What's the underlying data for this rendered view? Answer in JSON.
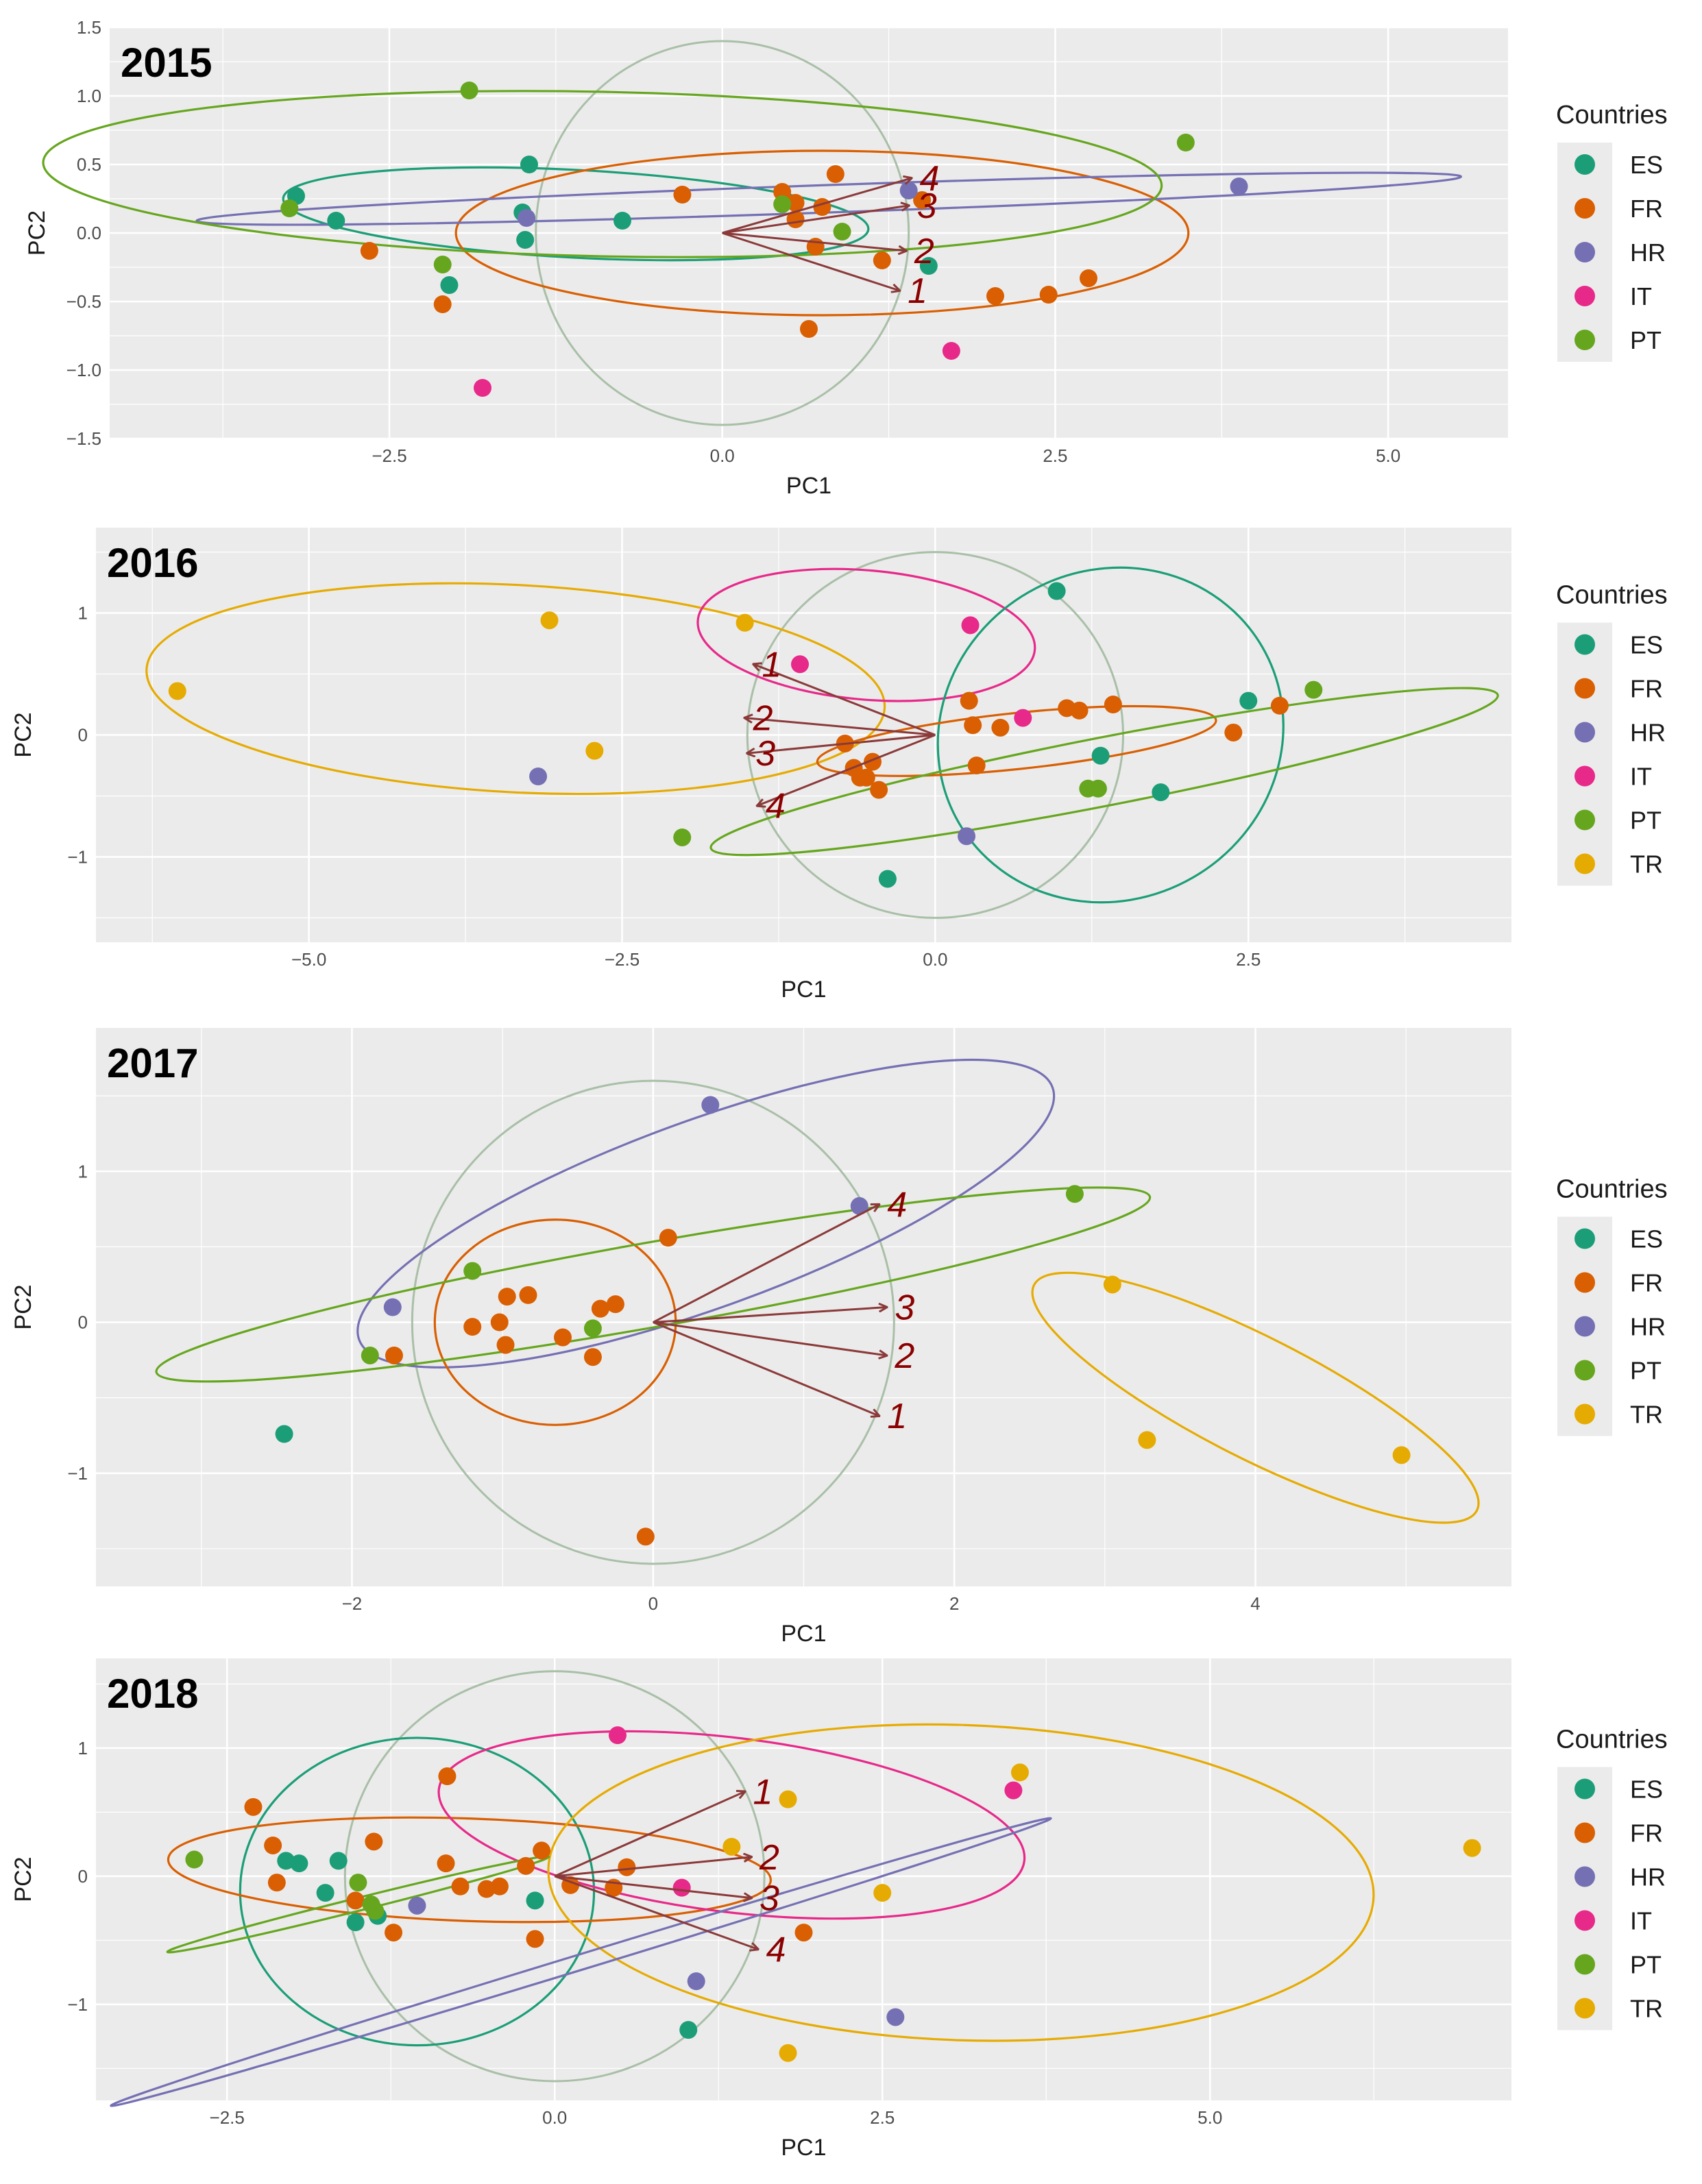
{
  "colors": {
    "ES": "#1b9e77",
    "FR": "#d95f02",
    "HR": "#7570b3",
    "IT": "#e7298a",
    "PT": "#66a61e",
    "TR": "#e6ab02",
    "circle": "#a9bfa7",
    "arrow": "#8b3a3a",
    "arrow_label": "#8b0000",
    "panel": "#ebebeb",
    "grid": "#ffffff"
  },
  "chart_data": [
    {
      "type": "scatter",
      "title": "2015",
      "xlabel": "PC1",
      "ylabel": "PC2",
      "xlim": [
        -4.6,
        5.9
      ],
      "ylim": [
        -1.5,
        1.5
      ],
      "xticks": [
        -2.5,
        0.0,
        2.5,
        5.0
      ],
      "xtick_labels": [
        "−2.5",
        "0.0",
        "2.5",
        "5.0"
      ],
      "yticks": [
        -1.5,
        -1.0,
        -0.5,
        0.0,
        0.5,
        1.0,
        1.5
      ],
      "ytick_labels": [
        "−1.5",
        "−1.0",
        "−0.5",
        "0.0",
        "0.5",
        "1.0",
        "1.5"
      ],
      "legend_title": "Countries",
      "legend": [
        "ES",
        "FR",
        "HR",
        "IT",
        "PT"
      ],
      "circle": {
        "cx": 0,
        "cy": 0,
        "r": 1.4
      },
      "points": [
        {
          "c": "ES",
          "x": -3.2,
          "y": 0.27
        },
        {
          "c": "ES",
          "x": -2.9,
          "y": 0.09
        },
        {
          "c": "ES",
          "x": -1.45,
          "y": 0.5
        },
        {
          "c": "ES",
          "x": -1.5,
          "y": 0.15
        },
        {
          "c": "ES",
          "x": -1.48,
          "y": -0.05
        },
        {
          "c": "ES",
          "x": -2.05,
          "y": -0.38
        },
        {
          "c": "ES",
          "x": -0.75,
          "y": 0.09
        },
        {
          "c": "ES",
          "x": 1.55,
          "y": -0.24
        },
        {
          "c": "FR",
          "x": -2.65,
          "y": -0.13
        },
        {
          "c": "FR",
          "x": -2.1,
          "y": -0.52
        },
        {
          "c": "FR",
          "x": -0.3,
          "y": 0.28
        },
        {
          "c": "FR",
          "x": 0.45,
          "y": 0.3
        },
        {
          "c": "FR",
          "x": 0.55,
          "y": 0.22
        },
        {
          "c": "FR",
          "x": 0.55,
          "y": 0.1
        },
        {
          "c": "FR",
          "x": 0.75,
          "y": 0.19
        },
        {
          "c": "FR",
          "x": 0.7,
          "y": -0.1
        },
        {
          "c": "FR",
          "x": 0.85,
          "y": 0.43
        },
        {
          "c": "FR",
          "x": 1.2,
          "y": -0.2
        },
        {
          "c": "FR",
          "x": 1.5,
          "y": 0.24
        },
        {
          "c": "FR",
          "x": 0.65,
          "y": -0.7
        },
        {
          "c": "FR",
          "x": 2.05,
          "y": -0.46
        },
        {
          "c": "FR",
          "x": 2.45,
          "y": -0.45
        },
        {
          "c": "FR",
          "x": 2.75,
          "y": -0.33
        },
        {
          "c": "HR",
          "x": -1.47,
          "y": 0.11
        },
        {
          "c": "HR",
          "x": 1.4,
          "y": 0.31
        },
        {
          "c": "HR",
          "x": 3.88,
          "y": 0.34
        },
        {
          "c": "IT",
          "x": -1.8,
          "y": -1.13
        },
        {
          "c": "IT",
          "x": 1.72,
          "y": -0.86
        },
        {
          "c": "PT",
          "x": -1.9,
          "y": 1.04
        },
        {
          "c": "PT",
          "x": -3.25,
          "y": 0.18
        },
        {
          "c": "PT",
          "x": -2.1,
          "y": -0.23
        },
        {
          "c": "PT",
          "x": 0.45,
          "y": 0.21
        },
        {
          "c": "PT",
          "x": 0.9,
          "y": 0.01
        },
        {
          "c": "PT",
          "x": 3.48,
          "y": 0.66
        }
      ],
      "ellipses": [
        {
          "c": "ES",
          "cx": -1.1,
          "cy": 0.14,
          "rx": 2.2,
          "ry": 0.32,
          "angle": -3
        },
        {
          "c": "FR",
          "cx": 0.75,
          "cy": 0.0,
          "rx": 2.75,
          "ry": 0.6,
          "angle": 0
        },
        {
          "c": "HR",
          "cx": 0.8,
          "cy": 0.25,
          "rx": 4.75,
          "ry": 0.1,
          "angle": 2
        },
        {
          "c": "PT",
          "cx": -0.9,
          "cy": 0.43,
          "rx": 4.2,
          "ry": 0.6,
          "angle": -1.2
        }
      ],
      "arrows": [
        {
          "label": "1",
          "x": 1.33,
          "y": -0.42
        },
        {
          "label": "2",
          "x": 1.38,
          "y": -0.13
        },
        {
          "label": "3",
          "x": 1.4,
          "y": 0.2
        },
        {
          "label": "4",
          "x": 1.42,
          "y": 0.4
        }
      ]
    },
    {
      "type": "scatter",
      "title": "2016",
      "xlabel": "PC1",
      "ylabel": "PC2",
      "xlim": [
        -6.7,
        4.6
      ],
      "ylim": [
        -1.7,
        1.7
      ],
      "xticks": [
        -5.0,
        -2.5,
        0.0,
        2.5
      ],
      "xtick_labels": [
        "−5.0",
        "−2.5",
        "0.0",
        "2.5"
      ],
      "yticks": [
        -1,
        0,
        1
      ],
      "ytick_labels": [
        "−1",
        "0",
        "1"
      ],
      "legend_title": "Countries",
      "legend": [
        "ES",
        "FR",
        "HR",
        "IT",
        "PT",
        "TR"
      ],
      "circle": {
        "cx": 0,
        "cy": 0,
        "r": 1.5
      },
      "points": [
        {
          "c": "ES",
          "x": 0.97,
          "y": 1.18
        },
        {
          "c": "ES",
          "x": 2.5,
          "y": 0.28
        },
        {
          "c": "ES",
          "x": 1.32,
          "y": -0.17
        },
        {
          "c": "ES",
          "x": 1.8,
          "y": -0.47
        },
        {
          "c": "ES",
          "x": -0.38,
          "y": -1.18
        },
        {
          "c": "FR",
          "x": -0.72,
          "y": -0.07
        },
        {
          "c": "FR",
          "x": -0.65,
          "y": -0.27
        },
        {
          "c": "FR",
          "x": -0.55,
          "y": -0.35
        },
        {
          "c": "FR",
          "x": -0.5,
          "y": -0.22
        },
        {
          "c": "FR",
          "x": -0.45,
          "y": -0.45
        },
        {
          "c": "FR",
          "x": -0.6,
          "y": -0.35
        },
        {
          "c": "FR",
          "x": 0.27,
          "y": 0.28
        },
        {
          "c": "FR",
          "x": 0.3,
          "y": 0.08
        },
        {
          "c": "FR",
          "x": 0.52,
          "y": 0.06
        },
        {
          "c": "FR",
          "x": 0.33,
          "y": -0.25
        },
        {
          "c": "FR",
          "x": 1.05,
          "y": 0.22
        },
        {
          "c": "FR",
          "x": 1.15,
          "y": 0.2
        },
        {
          "c": "FR",
          "x": 1.42,
          "y": 0.25
        },
        {
          "c": "FR",
          "x": 2.38,
          "y": 0.02
        },
        {
          "c": "FR",
          "x": 2.75,
          "y": 0.24
        },
        {
          "c": "HR",
          "x": -3.17,
          "y": -0.34
        },
        {
          "c": "HR",
          "x": 0.25,
          "y": -0.83
        },
        {
          "c": "IT",
          "x": -1.08,
          "y": 0.58
        },
        {
          "c": "IT",
          "x": 0.28,
          "y": 0.9
        },
        {
          "c": "IT",
          "x": 0.7,
          "y": 0.14
        },
        {
          "c": "PT",
          "x": -2.02,
          "y": -0.84
        },
        {
          "c": "PT",
          "x": 1.22,
          "y": -0.44
        },
        {
          "c": "PT",
          "x": 1.3,
          "y": -0.44
        },
        {
          "c": "PT",
          "x": 3.02,
          "y": 0.37
        },
        {
          "c": "TR",
          "x": -6.05,
          "y": 0.36
        },
        {
          "c": "TR",
          "x": -3.08,
          "y": 0.94
        },
        {
          "c": "TR",
          "x": -1.52,
          "y": 0.92
        },
        {
          "c": "TR",
          "x": -2.72,
          "y": -0.13
        }
      ],
      "ellipses": [
        {
          "c": "TR",
          "cx": -3.35,
          "cy": 0.38,
          "rx": 2.95,
          "ry": 0.85,
          "angle": -3
        },
        {
          "c": "IT",
          "cx": -0.55,
          "cy": 0.82,
          "rx": 1.35,
          "ry": 0.53,
          "angle": -5
        },
        {
          "c": "ES",
          "cx": 1.4,
          "cy": 0.0,
          "rx": 1.4,
          "ry": 1.35,
          "angle": 30
        },
        {
          "c": "FR",
          "cx": 0.65,
          "cy": -0.05,
          "rx": 1.6,
          "ry": 0.23,
          "angle": 6
        },
        {
          "c": "PT",
          "cx": 1.35,
          "cy": -0.3,
          "rx": 3.2,
          "ry": 0.28,
          "angle": 11
        }
      ],
      "arrows": [
        {
          "label": "1",
          "x": -1.45,
          "y": 0.58
        },
        {
          "label": "2",
          "x": -1.52,
          "y": 0.14
        },
        {
          "label": "3",
          "x": -1.5,
          "y": -0.15
        },
        {
          "label": "4",
          "x": -1.42,
          "y": -0.58
        }
      ]
    },
    {
      "type": "scatter",
      "title": "2017",
      "xlabel": "PC1",
      "ylabel": "PC2",
      "xlim": [
        -3.7,
        5.7
      ],
      "ylim": [
        -1.75,
        1.95
      ],
      "xticks": [
        -2,
        0,
        2,
        4
      ],
      "xtick_labels": [
        "−2",
        "0",
        "2",
        "4"
      ],
      "yticks": [
        -1,
        0,
        1
      ],
      "ytick_labels": [
        "−1",
        "0",
        "1"
      ],
      "legend_title": "Countries",
      "legend": [
        "ES",
        "FR",
        "HR",
        "PT",
        "TR"
      ],
      "circle": {
        "cx": 0,
        "cy": 0,
        "r": 1.6
      },
      "points": [
        {
          "c": "ES",
          "x": -2.45,
          "y": -0.74
        },
        {
          "c": "FR",
          "x": -1.72,
          "y": -0.22
        },
        {
          "c": "FR",
          "x": -1.2,
          "y": -0.03
        },
        {
          "c": "FR",
          "x": -1.02,
          "y": 0.0
        },
        {
          "c": "FR",
          "x": -0.97,
          "y": 0.17
        },
        {
          "c": "FR",
          "x": -0.83,
          "y": 0.18
        },
        {
          "c": "FR",
          "x": -0.98,
          "y": -0.15
        },
        {
          "c": "FR",
          "x": -0.6,
          "y": -0.1
        },
        {
          "c": "FR",
          "x": -0.35,
          "y": 0.09
        },
        {
          "c": "FR",
          "x": -0.25,
          "y": 0.12
        },
        {
          "c": "FR",
          "x": -0.4,
          "y": -0.23
        },
        {
          "c": "FR",
          "x": 0.1,
          "y": 0.56
        },
        {
          "c": "FR",
          "x": -0.05,
          "y": -1.42
        },
        {
          "c": "HR",
          "x": -1.73,
          "y": 0.1
        },
        {
          "c": "HR",
          "x": 0.38,
          "y": 1.44
        },
        {
          "c": "HR",
          "x": 1.37,
          "y": 0.77
        },
        {
          "c": "PT",
          "x": -1.2,
          "y": 0.34
        },
        {
          "c": "PT",
          "x": -1.88,
          "y": -0.22
        },
        {
          "c": "PT",
          "x": -0.4,
          "y": -0.04
        },
        {
          "c": "PT",
          "x": 2.8,
          "y": 0.85
        },
        {
          "c": "TR",
          "x": 3.05,
          "y": 0.25
        },
        {
          "c": "TR",
          "x": 3.28,
          "y": -0.78
        },
        {
          "c": "TR",
          "x": 4.97,
          "y": -0.88
        }
      ],
      "ellipses": [
        {
          "c": "HR",
          "cx": 0.35,
          "cy": 0.72,
          "rx": 2.45,
          "ry": 0.62,
          "angle": 20
        },
        {
          "c": "FR",
          "cx": -0.65,
          "cy": 0.0,
          "rx": 0.8,
          "ry": 0.68,
          "angle": 0
        },
        {
          "c": "PT",
          "cx": 0.0,
          "cy": 0.25,
          "rx": 3.35,
          "ry": 0.28,
          "angle": 10
        },
        {
          "c": "TR",
          "cx": 4.0,
          "cy": -0.5,
          "rx": 1.65,
          "ry": 0.4,
          "angle": -27
        }
      ],
      "arrows": [
        {
          "label": "1",
          "x": 1.5,
          "y": -0.62
        },
        {
          "label": "2",
          "x": 1.55,
          "y": -0.22
        },
        {
          "label": "3",
          "x": 1.55,
          "y": 0.1
        },
        {
          "label": "4",
          "x": 1.5,
          "y": 0.78
        }
      ]
    },
    {
      "type": "scatter",
      "title": "2018",
      "xlabel": "PC1",
      "ylabel": "PC2",
      "xlim": [
        -3.5,
        7.3
      ],
      "ylim": [
        -1.75,
        1.7
      ],
      "xticks": [
        -2.5,
        0.0,
        2.5,
        5.0
      ],
      "xtick_labels": [
        "−2.5",
        "0.0",
        "2.5",
        "5.0"
      ],
      "yticks": [
        -1,
        0,
        1
      ],
      "ytick_labels": [
        "−1",
        "0",
        "1"
      ],
      "legend_title": "Countries",
      "legend": [
        "ES",
        "FR",
        "HR",
        "IT",
        "PT",
        "TR"
      ],
      "circle": {
        "cx": 0,
        "cy": 0,
        "r": 1.6
      },
      "points": [
        {
          "c": "ES",
          "x": -2.05,
          "y": 0.12
        },
        {
          "c": "ES",
          "x": -1.95,
          "y": 0.1
        },
        {
          "c": "ES",
          "x": -1.65,
          "y": 0.12
        },
        {
          "c": "ES",
          "x": -1.75,
          "y": -0.13
        },
        {
          "c": "ES",
          "x": -1.52,
          "y": -0.36
        },
        {
          "c": "ES",
          "x": -1.35,
          "y": -0.31
        },
        {
          "c": "ES",
          "x": -0.15,
          "y": -0.19
        },
        {
          "c": "ES",
          "x": 1.02,
          "y": -1.2
        },
        {
          "c": "FR",
          "x": -2.3,
          "y": 0.54
        },
        {
          "c": "FR",
          "x": -2.15,
          "y": 0.24
        },
        {
          "c": "FR",
          "x": -2.12,
          "y": -0.05
        },
        {
          "c": "FR",
          "x": -1.38,
          "y": 0.27
        },
        {
          "c": "FR",
          "x": -1.52,
          "y": -0.19
        },
        {
          "c": "FR",
          "x": -1.23,
          "y": -0.44
        },
        {
          "c": "FR",
          "x": -0.82,
          "y": 0.78
        },
        {
          "c": "FR",
          "x": -0.83,
          "y": 0.1
        },
        {
          "c": "FR",
          "x": -0.72,
          "y": -0.08
        },
        {
          "c": "FR",
          "x": -0.52,
          "y": -0.1
        },
        {
          "c": "FR",
          "x": -0.42,
          "y": -0.08
        },
        {
          "c": "FR",
          "x": -0.22,
          "y": 0.08
        },
        {
          "c": "FR",
          "x": -0.1,
          "y": 0.2
        },
        {
          "c": "FR",
          "x": -0.15,
          "y": -0.49
        },
        {
          "c": "FR",
          "x": 0.12,
          "y": -0.07
        },
        {
          "c": "FR",
          "x": 0.45,
          "y": -0.09
        },
        {
          "c": "FR",
          "x": 0.55,
          "y": 0.07
        },
        {
          "c": "FR",
          "x": 1.9,
          "y": -0.44
        },
        {
          "c": "HR",
          "x": -1.05,
          "y": -0.23
        },
        {
          "c": "HR",
          "x": 1.08,
          "y": -0.82
        },
        {
          "c": "HR",
          "x": 2.6,
          "y": -1.1
        },
        {
          "c": "IT",
          "x": 0.48,
          "y": 1.1
        },
        {
          "c": "IT",
          "x": 0.97,
          "y": -0.09
        },
        {
          "c": "IT",
          "x": 3.5,
          "y": 0.67
        },
        {
          "c": "PT",
          "x": -2.75,
          "y": 0.13
        },
        {
          "c": "PT",
          "x": -1.5,
          "y": -0.05
        },
        {
          "c": "PT",
          "x": -1.4,
          "y": -0.22
        },
        {
          "c": "PT",
          "x": -1.37,
          "y": -0.27
        },
        {
          "c": "TR",
          "x": 1.35,
          "y": 0.23
        },
        {
          "c": "TR",
          "x": 1.78,
          "y": 0.6
        },
        {
          "c": "TR",
          "x": 3.55,
          "y": 0.81
        },
        {
          "c": "TR",
          "x": 2.5,
          "y": -0.13
        },
        {
          "c": "TR",
          "x": 1.78,
          "y": -1.38
        },
        {
          "c": "TR",
          "x": 7.0,
          "y": 0.22
        }
      ],
      "ellipses": [
        {
          "c": "ES",
          "cx": -1.05,
          "cy": -0.12,
          "rx": 1.35,
          "ry": 1.2,
          "angle": 0
        },
        {
          "c": "FR",
          "cx": -0.65,
          "cy": 0.05,
          "rx": 2.3,
          "ry": 0.4,
          "angle": -2
        },
        {
          "c": "IT",
          "cx": 1.35,
          "cy": 0.4,
          "rx": 2.25,
          "ry": 0.68,
          "angle": -7
        },
        {
          "c": "TR",
          "cx": 3.1,
          "cy": -0.05,
          "rx": 3.15,
          "ry": 1.23,
          "angle": -2
        },
        {
          "c": "HR",
          "cx": 0.2,
          "cy": -0.67,
          "rx": 3.75,
          "ry": 0.06,
          "angle": 17
        },
        {
          "c": "PT",
          "cx": -1.5,
          "cy": -0.22,
          "rx": 1.5,
          "ry": 0.05,
          "angle": 14
        }
      ],
      "arrows": [
        {
          "label": "1",
          "x": 1.45,
          "y": 0.66
        },
        {
          "label": "2",
          "x": 1.5,
          "y": 0.15
        },
        {
          "label": "3",
          "x": 1.5,
          "y": -0.17
        },
        {
          "label": "4",
          "x": 1.55,
          "y": -0.57
        }
      ]
    }
  ]
}
